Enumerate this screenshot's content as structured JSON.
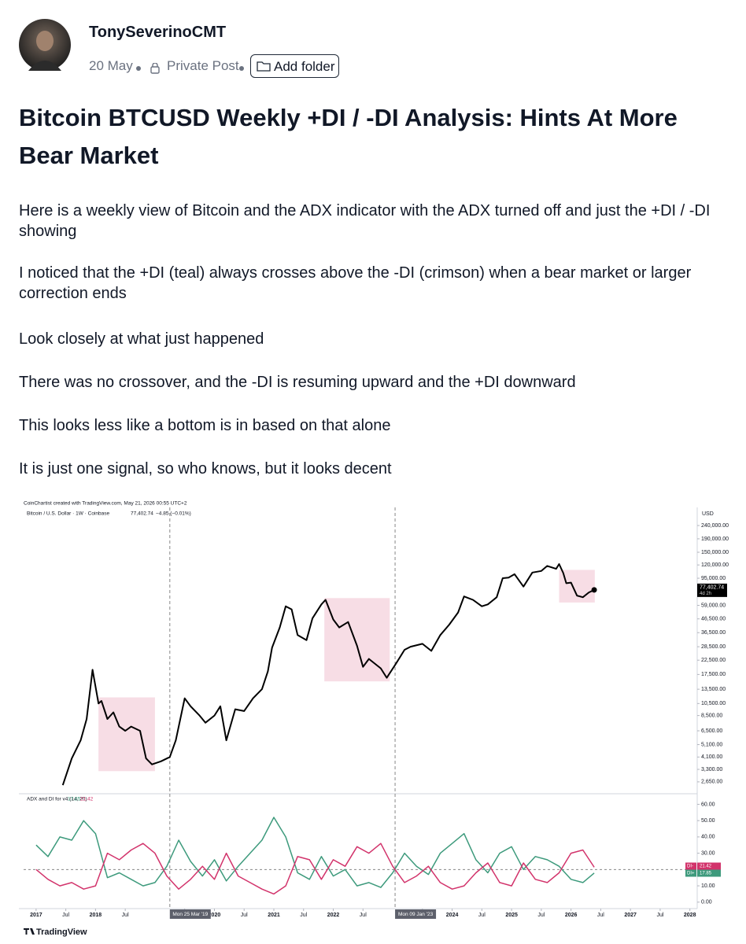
{
  "post": {
    "author": "TonySeverinoCMT",
    "date": "20 May",
    "privacy": "Private Post",
    "add_folder": "Add folder",
    "title": "Bitcoin BTCUSD Weekly +DI / -DI Analysis: Hints At More Bear Market",
    "paragraphs": [
      "Here is a weekly view of Bitcoin and the ADX indicator with the ADX turned off and just the +DI / -DI showing",
      "I noticed that the +DI (teal) always crosses above the -DI (crimson) when a bear market or larger correction ends",
      "Look closely at what just happened",
      "There was no crossover, and the -DI is resuming upward and the +DI downward",
      "This looks less like a bottom is in based on that alone",
      "It is just one signal, so who knows, but it looks decent"
    ]
  },
  "chart_image": {
    "caption": "CoinChartist created with TradingView.com, May 21, 2026 00:55 UTC+2",
    "logo": "TradingView"
  },
  "chart_data": [
    {
      "type": "line",
      "title": "Bitcoin / U.S. Dollar · 1W · Coinbase",
      "last_value_label": "77,402.74",
      "change": "−4.85 (−0.01%)",
      "countdown": "4d 2h",
      "y_unit": "USD",
      "log_scale": true,
      "color": "#000000",
      "x": [
        2017.45,
        2017.6,
        2017.75,
        2017.85,
        2017.95,
        2018.05,
        2018.1,
        2018.2,
        2018.3,
        2018.4,
        2018.5,
        2018.6,
        2018.75,
        2018.85,
        2018.95,
        2019.1,
        2019.25,
        2019.35,
        2019.5,
        2019.6,
        2019.75,
        2019.85,
        2020.0,
        2020.1,
        2020.2,
        2020.35,
        2020.5,
        2020.65,
        2020.8,
        2020.9,
        2020.97,
        2021.1,
        2021.2,
        2021.3,
        2021.4,
        2021.55,
        2021.65,
        2021.8,
        2021.87,
        2022.0,
        2022.1,
        2022.25,
        2022.4,
        2022.5,
        2022.6,
        2022.8,
        2022.9,
        2023.05,
        2023.2,
        2023.3,
        2023.5,
        2023.65,
        2023.8,
        2023.95,
        2024.1,
        2024.2,
        2024.35,
        2024.5,
        2024.6,
        2024.75,
        2024.85,
        2024.95,
        2025.05,
        2025.2,
        2025.35,
        2025.5,
        2025.6,
        2025.75,
        2025.8,
        2025.87,
        2025.92,
        2026.0,
        2026.1,
        2026.2,
        2026.3,
        2026.39
      ],
      "values": [
        2500,
        4000,
        5500,
        8000,
        19000,
        10500,
        11000,
        8000,
        9000,
        7000,
        6500,
        7000,
        6500,
        4000,
        3600,
        3800,
        4100,
        5500,
        11500,
        10000,
        8500,
        7500,
        8500,
        10000,
        5500,
        9500,
        9200,
        11500,
        13500,
        18500,
        28000,
        40000,
        58000,
        55000,
        35000,
        32000,
        47000,
        60000,
        65000,
        46000,
        40000,
        44000,
        29000,
        20000,
        23000,
        19500,
        16500,
        21000,
        27000,
        28500,
        30000,
        26500,
        35000,
        42000,
        52000,
        69000,
        65000,
        58000,
        60000,
        68000,
        95000,
        96000,
        102000,
        82000,
        105000,
        108000,
        118000,
        112000,
        122000,
        104000,
        87000,
        88000,
        70000,
        68000,
        74000,
        77402.74
      ],
      "xlim": [
        2016.79,
        2028.11
      ],
      "ylim": [
        2180,
        330000
      ],
      "yticks": [
        {
          "value": 240000,
          "label": "240,000.00"
        },
        {
          "value": 190000,
          "label": "190,000.00"
        },
        {
          "value": 150000,
          "label": "150,000.00"
        },
        {
          "value": 120000,
          "label": "120,000.00"
        },
        {
          "value": 95000,
          "label": "95,000.00"
        },
        {
          "value": 59000,
          "label": "59,000.00"
        },
        {
          "value": 46500,
          "label": "46,500.00"
        },
        {
          "value": 36500,
          "label": "36,500.00"
        },
        {
          "value": 28500,
          "label": "28,500.00"
        },
        {
          "value": 22500,
          "label": "22,500.00"
        },
        {
          "value": 17500,
          "label": "17,500.00"
        },
        {
          "value": 13500,
          "label": "13,500.00"
        },
        {
          "value": 10500,
          "label": "10,500.00"
        },
        {
          "value": 8500,
          "label": "8,500.00"
        },
        {
          "value": 6500,
          "label": "6,500.00"
        },
        {
          "value": 5100,
          "label": "5,100.00"
        },
        {
          "value": 4100,
          "label": "4,100.00"
        },
        {
          "value": 3300,
          "label": "3,300.00"
        },
        {
          "value": 2650,
          "label": "2,650.00"
        }
      ],
      "regions": [
        {
          "x": [
            2018.05,
            2019.0
          ],
          "y": [
            3200,
            11700
          ],
          "color": "#f7dde5"
        },
        {
          "x": [
            2021.85,
            2022.95
          ],
          "y": [
            15500,
            67000
          ],
          "color": "#f7dde5"
        },
        {
          "x": [
            2025.8,
            2026.4
          ],
          "y": [
            62000,
            110000
          ],
          "color": "#f7dde5"
        }
      ],
      "vlines": [
        {
          "value": 2019.25,
          "label": "Mon 25 Mar '19"
        },
        {
          "value": 2023.04,
          "label": "Mon 09 Jan '23"
        }
      ]
    },
    {
      "type": "line",
      "title": "ADX and DI for v4 (14, 20)",
      "threshold": 20,
      "x": [
        2017,
        2017.2,
        2017.4,
        2017.6,
        2017.8,
        2018,
        2018.2,
        2018.4,
        2018.6,
        2018.8,
        2019,
        2019.2,
        2019.4,
        2019.6,
        2019.8,
        2020,
        2020.2,
        2020.4,
        2020.6,
        2020.8,
        2021,
        2021.2,
        2021.4,
        2021.6,
        2021.8,
        2022,
        2022.2,
        2022.4,
        2022.6,
        2022.8,
        2023,
        2023.2,
        2023.4,
        2023.6,
        2023.8,
        2024,
        2024.2,
        2024.4,
        2024.6,
        2024.8,
        2025,
        2025.2,
        2025.4,
        2025.6,
        2025.8,
        2026,
        2026.2,
        2026.39
      ],
      "series": [
        {
          "name": "DI+",
          "color": "#3d9a7c",
          "values": [
            35,
            28,
            40,
            38,
            50,
            42,
            15,
            18,
            14,
            10,
            12,
            22,
            38,
            25,
            16,
            26,
            13,
            22,
            30,
            38,
            52,
            40,
            18,
            14,
            28,
            16,
            20,
            10,
            12,
            9,
            18,
            30,
            22,
            17,
            30,
            36,
            42,
            26,
            18,
            30,
            34,
            20,
            28,
            26,
            22,
            14,
            12,
            17.85
          ]
        },
        {
          "name": "DI-",
          "color": "#d2336b",
          "values": [
            20,
            14,
            10,
            12,
            8,
            10,
            30,
            26,
            32,
            36,
            30,
            16,
            8,
            14,
            22,
            14,
            30,
            16,
            12,
            8,
            5,
            10,
            28,
            26,
            14,
            26,
            22,
            34,
            30,
            36,
            22,
            12,
            16,
            22,
            12,
            8,
            10,
            18,
            24,
            12,
            10,
            24,
            14,
            12,
            18,
            30,
            32,
            21.42
          ]
        }
      ],
      "xlim": [
        2016.79,
        2028.11
      ],
      "ylim": [
        -3,
        66
      ],
      "yticks": [
        {
          "value": 60,
          "label": "60.00"
        },
        {
          "value": 50,
          "label": "50.00"
        },
        {
          "value": 40,
          "label": "40.00"
        },
        {
          "value": 30,
          "label": "30.00"
        },
        {
          "value": 10,
          "label": "10.00"
        },
        {
          "value": 0,
          "label": "0.00"
        }
      ],
      "xticks": [
        2017,
        {
          "value": 2017.5,
          "label": "Jul"
        },
        2018,
        {
          "value": 2018.5,
          "label": "Jul"
        },
        {
          "value": 2019.5,
          "label": "Jul"
        },
        2020,
        {
          "value": 2020.5,
          "label": "Jul"
        },
        2021,
        {
          "value": 2021.5,
          "label": "Jul"
        },
        2022,
        {
          "value": 2022.5,
          "label": "Jul"
        },
        {
          "value": 2023.5,
          "label": "Jul"
        },
        2024,
        {
          "value": 2024.5,
          "label": "Jul"
        },
        2025,
        {
          "value": 2025.5,
          "label": "Jul"
        },
        2026,
        {
          "value": 2026.5,
          "label": "Jul"
        },
        2027,
        {
          "value": 2027.5,
          "label": "Jul"
        },
        2028
      ]
    }
  ]
}
